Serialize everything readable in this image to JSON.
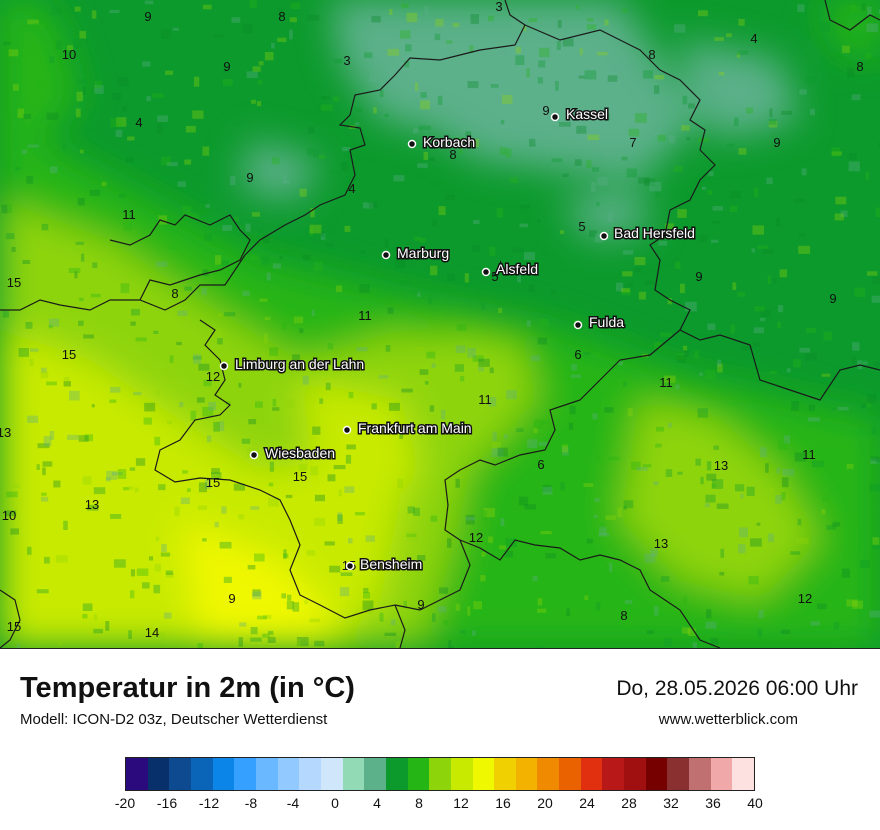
{
  "map": {
    "temperature_labels": [
      {
        "value": "9"
      },
      {
        "value": "8"
      },
      {
        "value": "3"
      },
      {
        "value": "10"
      },
      {
        "value": "9"
      },
      {
        "value": "3"
      },
      {
        "value": "9"
      },
      {
        "value": "8"
      },
      {
        "value": "4"
      },
      {
        "value": "8"
      },
      {
        "value": "4"
      },
      {
        "value": "8"
      },
      {
        "value": "7"
      },
      {
        "value": "9"
      },
      {
        "value": "9"
      },
      {
        "value": "4"
      },
      {
        "value": "11"
      },
      {
        "value": "5"
      },
      {
        "value": "15"
      },
      {
        "value": "8"
      },
      {
        "value": "5"
      },
      {
        "value": "9"
      },
      {
        "value": "9"
      },
      {
        "value": "11"
      },
      {
        "value": "15"
      },
      {
        "value": "12"
      },
      {
        "value": "6"
      },
      {
        "value": "11"
      },
      {
        "value": "13"
      },
      {
        "value": "11"
      },
      {
        "value": "6"
      },
      {
        "value": "13"
      },
      {
        "value": "11"
      },
      {
        "value": "15"
      },
      {
        "value": "15"
      },
      {
        "value": "13"
      },
      {
        "value": "10"
      },
      {
        "value": "12"
      },
      {
        "value": "13"
      },
      {
        "value": "15"
      },
      {
        "value": "9"
      },
      {
        "value": "9"
      },
      {
        "value": "8"
      },
      {
        "value": "12"
      },
      {
        "value": "15"
      },
      {
        "value": "14"
      }
    ],
    "cities": [
      {
        "name": "Kassel"
      },
      {
        "name": "Korbach"
      },
      {
        "name": "Bad Hersfeld"
      },
      {
        "name": "Marburg"
      },
      {
        "name": "Alsfeld"
      },
      {
        "name": "Fulda"
      },
      {
        "name": "Limburg an der Lahn"
      },
      {
        "name": "Frankfurt am Main"
      },
      {
        "name": "Wiesbaden"
      },
      {
        "name": "Bensheim"
      }
    ]
  },
  "footer": {
    "title": "Temperatur in 2m (in °C)",
    "model": "Modell: ICON-D2 03z, Deutscher Wetterdienst",
    "datetime": "Do, 28.05.2026 06:00 Uhr",
    "website": "www.wetterblick.com"
  },
  "legend": {
    "colors": [
      "#2a0a7d",
      "#08306b",
      "#0d4a8f",
      "#0a64b8",
      "#0b86e8",
      "#35a0ff",
      "#6ab8ff",
      "#92c9ff",
      "#b5d8ff",
      "#d0e6fb",
      "#92d9b6",
      "#5cb08a",
      "#0c9a2c",
      "#25b515",
      "#8ed40a",
      "#c8ea00",
      "#f0f800",
      "#f0d000",
      "#f3b100",
      "#f08a00",
      "#ea6200",
      "#e03010",
      "#b81818",
      "#a01010",
      "#760000",
      "#8a3030",
      "#c07070",
      "#f0a8a8",
      "#fde0e0"
    ],
    "ticks": [
      "-20",
      "-16",
      "-12",
      "-8",
      "-4",
      "0",
      "4",
      "8",
      "12",
      "16",
      "20",
      "24",
      "28",
      "32",
      "36",
      "40"
    ]
  }
}
